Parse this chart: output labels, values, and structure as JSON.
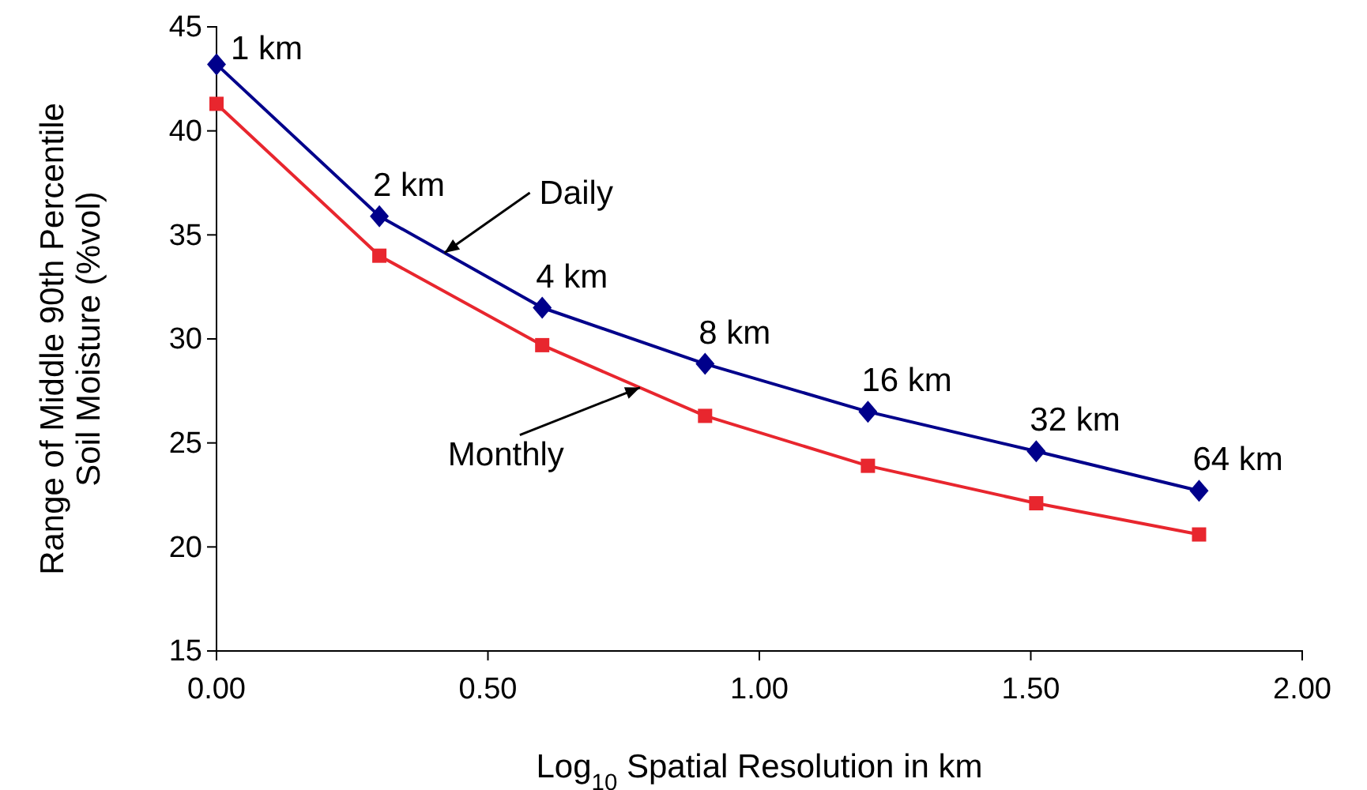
{
  "chart_data": {
    "type": "line",
    "xlabel": "Log$_{10}$ Spatial Resolution in km",
    "ylabel": "Range of Middle 90th Percentile\nSoil Moisture (%vol)",
    "x": [
      0,
      0.3,
      0.6,
      0.9,
      1.2,
      1.51,
      1.81
    ],
    "series": [
      {
        "name": "Daily",
        "color": "#00008b",
        "marker": "diamond",
        "values": [
          43.2,
          35.9,
          31.5,
          28.8,
          26.5,
          24.6,
          22.7
        ]
      },
      {
        "name": "Monthly",
        "color": "#e8262e",
        "marker": "square",
        "values": [
          41.3,
          34.0,
          29.7,
          26.3,
          23.9,
          22.1,
          20.6
        ]
      }
    ],
    "xlim": [
      0,
      2
    ],
    "xticks": [
      {
        "value": 0,
        "label": "0.00"
      },
      {
        "value": 0.5,
        "label": "0.50"
      },
      {
        "value": 1,
        "label": "1.00"
      },
      {
        "value": 1.5,
        "label": "1.50"
      },
      {
        "value": 2,
        "label": "2.00"
      }
    ],
    "ylim": [
      15,
      45
    ],
    "yticks": [
      15,
      20,
      25,
      30,
      35,
      40,
      45
    ],
    "grid": false,
    "legend": false,
    "annotations": [
      {
        "text": "1 km",
        "x": 0,
        "y": 43.2
      },
      {
        "text": "2 km",
        "x": 0.3,
        "y": 35.9
      },
      {
        "text": "4 km",
        "x": 0.6,
        "y": 31.5
      },
      {
        "text": "8 km",
        "x": 0.9,
        "y": 28.8
      },
      {
        "text": "16 km",
        "x": 1.2,
        "y": 26.5
      },
      {
        "text": "32 km",
        "x": 1.51,
        "y": 24.6
      },
      {
        "text": "64 km",
        "x": 1.81,
        "y": 22.7
      }
    ]
  }
}
